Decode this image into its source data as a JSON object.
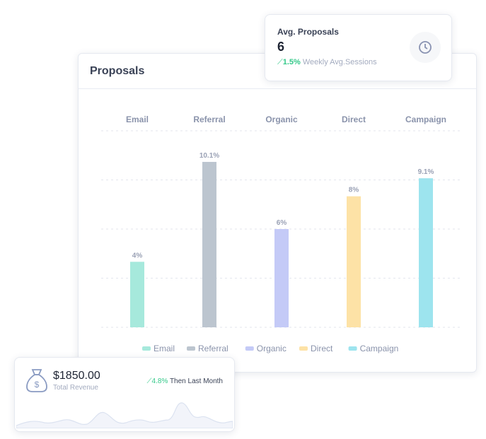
{
  "proposals_card": {
    "title": "Proposals"
  },
  "avg_card": {
    "title": "Avg. Proposals",
    "value": "6",
    "change": "1.5%",
    "change_label": "Weekly Avg.Sessions",
    "icon": "clock-icon"
  },
  "revenue_card": {
    "value": "$1850.00",
    "label": "Total Revenue",
    "change": "4.8%",
    "change_label": "Then Last Month",
    "icon": "money-bag-icon"
  },
  "chart_data": {
    "type": "bar",
    "categories": [
      "Email",
      "Referral",
      "Organic",
      "Direct",
      "Campaign"
    ],
    "values": [
      4,
      10.1,
      6,
      8,
      9.1
    ],
    "data_labels": [
      "4%",
      "10.1%",
      "6%",
      "8%",
      "9.1%"
    ],
    "colors": [
      "#a6e9dc",
      "#bcc5cf",
      "#c4caf7",
      "#fde2a6",
      "#9de4ee"
    ],
    "ylim": [
      0,
      12
    ],
    "grid": true,
    "legend": "bottom",
    "legend_entries": [
      "Email",
      "Referral",
      "Organic",
      "Direct",
      "Campaign"
    ]
  }
}
